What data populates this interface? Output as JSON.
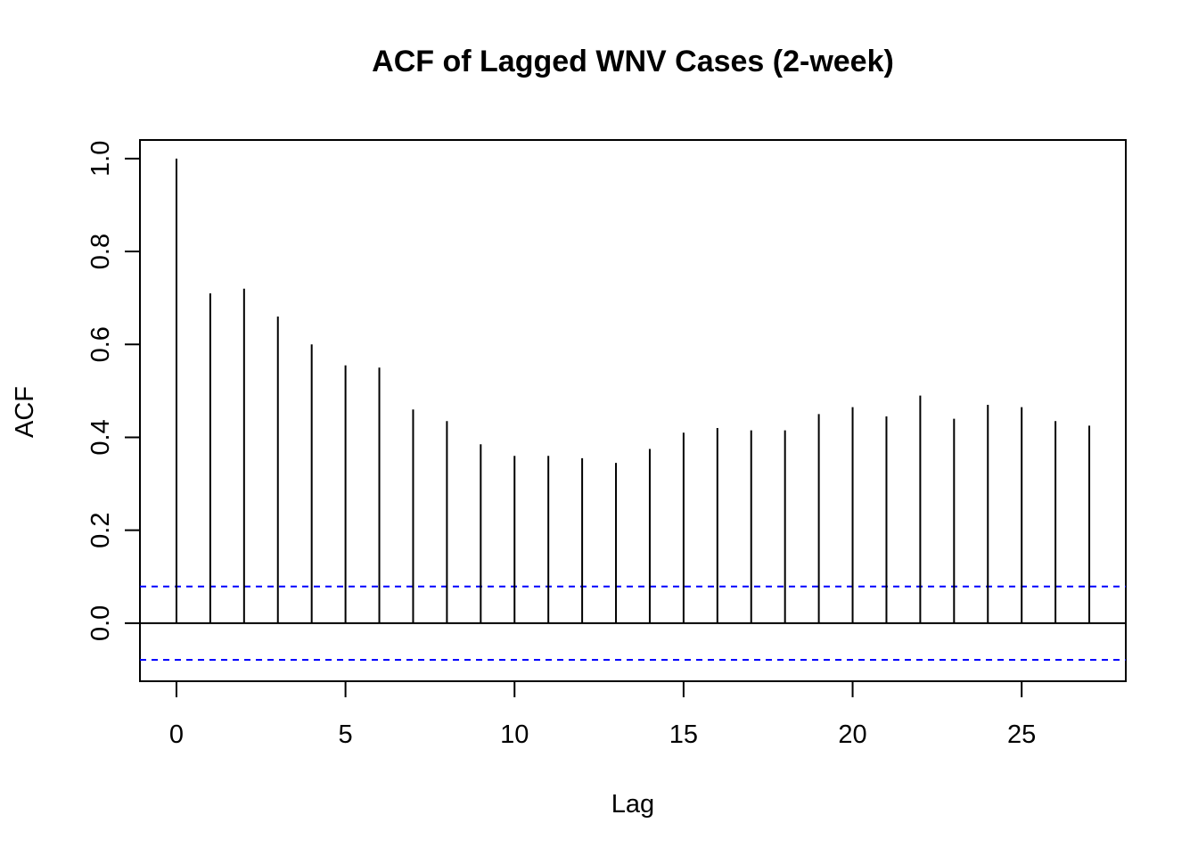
{
  "chart_data": {
    "type": "bar",
    "title": "ACF of Lagged WNV Cases (2-week)",
    "xlabel": "Lag",
    "ylabel": "ACF",
    "x": [
      0,
      1,
      2,
      3,
      4,
      5,
      6,
      7,
      8,
      9,
      10,
      11,
      12,
      13,
      14,
      15,
      16,
      17,
      18,
      19,
      20,
      21,
      22,
      23,
      24,
      25,
      26,
      27
    ],
    "values": [
      1.0,
      0.71,
      0.72,
      0.66,
      0.6,
      0.555,
      0.55,
      0.46,
      0.435,
      0.385,
      0.36,
      0.36,
      0.355,
      0.345,
      0.375,
      0.41,
      0.42,
      0.415,
      0.415,
      0.45,
      0.465,
      0.445,
      0.49,
      0.44,
      0.47,
      0.465,
      0.435,
      0.425
    ],
    "xlim": [
      -1.08,
      28.08
    ],
    "ylim": [
      -0.125,
      1.04
    ],
    "xticks": [
      "0",
      "5",
      "10",
      "15",
      "20",
      "25"
    ],
    "yticks": [
      "0.0",
      "0.2",
      "0.4",
      "0.6",
      "0.8",
      "1.0"
    ],
    "confidence_bound": 0.079,
    "grid": false,
    "colors": {
      "bars": "#000000",
      "confidence": "#0000ff",
      "frame": "#000000"
    }
  }
}
